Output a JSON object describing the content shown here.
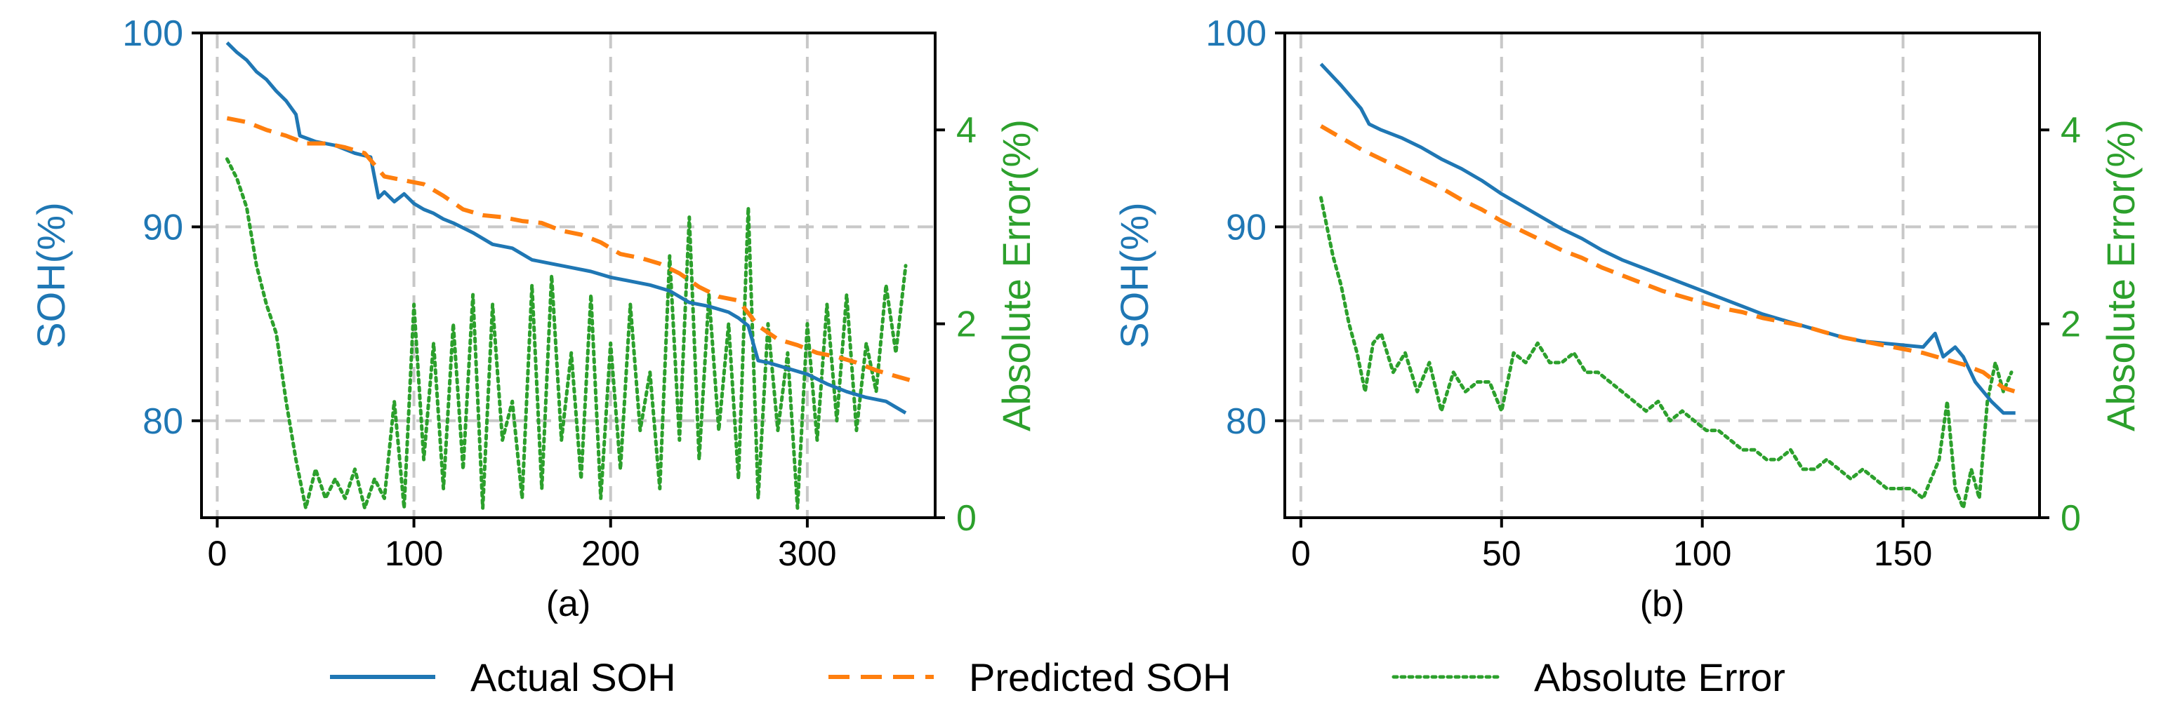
{
  "colors": {
    "actual": "#1f77b4",
    "predicted": "#ff7f0e",
    "error": "#2ca02c",
    "grid": "#c8c8c8",
    "axis": "#000000"
  },
  "legend": {
    "placement": "bottom-center",
    "items": [
      {
        "key": "actual",
        "label": "Actual SOH",
        "style": "solid"
      },
      {
        "key": "predicted",
        "label": "Predicted SOH",
        "style": "dashed"
      },
      {
        "key": "error",
        "label": "Absolute Error",
        "style": "dotted"
      }
    ]
  },
  "chart_data": [
    {
      "type": "line",
      "panel_label": "(a)",
      "ylabel": "SOH(%)",
      "y2label": "Absolute Error(%)",
      "xlim": [
        -8,
        365
      ],
      "ylim": [
        75,
        100
      ],
      "y2lim": [
        0,
        5
      ],
      "xticks": [
        0,
        100,
        200,
        300
      ],
      "yticks": [
        80,
        90,
        100
      ],
      "y2ticks": [
        0,
        2,
        4
      ],
      "grid": true,
      "series": [
        {
          "name": "Actual SOH",
          "axis": "left",
          "x": [
            5,
            10,
            15,
            20,
            25,
            30,
            35,
            40,
            42,
            50,
            60,
            70,
            78,
            82,
            85,
            90,
            95,
            100,
            105,
            110,
            115,
            120,
            130,
            140,
            150,
            160,
            170,
            180,
            190,
            200,
            210,
            220,
            230,
            240,
            250,
            260,
            265,
            270,
            275,
            280,
            290,
            300,
            310,
            320,
            330,
            340,
            350
          ],
          "y": [
            99.5,
            99.0,
            98.6,
            98.0,
            97.6,
            97.0,
            96.5,
            95.8,
            94.7,
            94.4,
            94.2,
            93.8,
            93.6,
            91.5,
            91.8,
            91.3,
            91.7,
            91.2,
            90.9,
            90.7,
            90.4,
            90.2,
            89.7,
            89.1,
            88.9,
            88.3,
            88.1,
            87.9,
            87.7,
            87.4,
            87.2,
            87.0,
            86.7,
            86.1,
            85.9,
            85.6,
            85.3,
            84.9,
            83.1,
            83.0,
            82.7,
            82.4,
            81.9,
            81.5,
            81.2,
            81.0,
            80.4
          ]
        },
        {
          "name": "Predicted SOH",
          "axis": "left",
          "x": [
            5,
            15,
            25,
            35,
            45,
            55,
            65,
            75,
            85,
            95,
            105,
            115,
            125,
            135,
            145,
            155,
            165,
            175,
            185,
            195,
            205,
            215,
            225,
            235,
            245,
            255,
            265,
            275,
            285,
            295,
            305,
            315,
            325,
            335,
            345,
            352
          ],
          "y": [
            95.6,
            95.4,
            95.0,
            94.7,
            94.3,
            94.3,
            94.1,
            93.8,
            92.6,
            92.4,
            92.2,
            91.6,
            90.9,
            90.6,
            90.5,
            90.3,
            90.2,
            89.8,
            89.6,
            89.2,
            88.6,
            88.4,
            88.1,
            87.6,
            86.9,
            86.4,
            86.2,
            84.9,
            84.2,
            83.9,
            83.5,
            83.3,
            83.0,
            82.6,
            82.3,
            82.1
          ]
        },
        {
          "name": "Absolute Error",
          "axis": "right",
          "x": [
            5,
            10,
            15,
            20,
            25,
            30,
            35,
            40,
            45,
            50,
            55,
            60,
            65,
            70,
            75,
            80,
            85,
            90,
            95,
            100,
            105,
            110,
            115,
            120,
            125,
            130,
            135,
            140,
            145,
            150,
            155,
            160,
            165,
            170,
            175,
            180,
            185,
            190,
            195,
            200,
            205,
            210,
            215,
            220,
            225,
            230,
            235,
            240,
            245,
            250,
            255,
            260,
            265,
            270,
            275,
            280,
            285,
            290,
            295,
            300,
            305,
            310,
            315,
            320,
            325,
            330,
            335,
            340,
            345,
            350
          ],
          "y": [
            3.7,
            3.5,
            3.2,
            2.6,
            2.2,
            1.9,
            1.2,
            0.6,
            0.1,
            0.5,
            0.2,
            0.4,
            0.2,
            0.5,
            0.1,
            0.4,
            0.2,
            1.2,
            0.1,
            2.2,
            0.6,
            1.8,
            0.3,
            2.0,
            0.5,
            2.3,
            0.1,
            2.2,
            0.8,
            1.2,
            0.2,
            2.4,
            0.3,
            2.5,
            0.8,
            1.7,
            0.4,
            2.3,
            0.2,
            1.8,
            0.5,
            2.2,
            0.9,
            1.5,
            0.3,
            2.7,
            0.8,
            3.1,
            0.6,
            2.3,
            0.9,
            2.0,
            0.4,
            3.2,
            0.2,
            2.0,
            0.9,
            1.7,
            0.1,
            2.0,
            0.8,
            2.2,
            1.0,
            2.3,
            0.9,
            1.8,
            1.3,
            2.4,
            1.7,
            2.6
          ]
        }
      ]
    },
    {
      "type": "line",
      "panel_label": "(b)",
      "ylabel": "SOH(%)",
      "y2label": "Absolute Error(%)",
      "xlim": [
        -4,
        184
      ],
      "ylim": [
        75,
        100
      ],
      "y2lim": [
        0,
        5
      ],
      "xticks": [
        0,
        50,
        100,
        150
      ],
      "yticks": [
        80,
        90,
        100
      ],
      "y2ticks": [
        0,
        2,
        4
      ],
      "grid": true,
      "series": [
        {
          "name": "Actual SOH",
          "axis": "left",
          "x": [
            5,
            10,
            15,
            17,
            20,
            25,
            30,
            35,
            40,
            45,
            50,
            55,
            60,
            65,
            70,
            75,
            80,
            85,
            90,
            95,
            100,
            105,
            110,
            115,
            120,
            125,
            130,
            135,
            140,
            145,
            150,
            155,
            158,
            160,
            163,
            165,
            168,
            172,
            175,
            178
          ],
          "y": [
            98.4,
            97.3,
            96.1,
            95.3,
            95.0,
            94.6,
            94.1,
            93.5,
            93.0,
            92.4,
            91.7,
            91.1,
            90.5,
            89.9,
            89.4,
            88.8,
            88.3,
            87.9,
            87.5,
            87.1,
            86.7,
            86.3,
            85.9,
            85.5,
            85.2,
            84.9,
            84.6,
            84.3,
            84.1,
            84.0,
            83.9,
            83.8,
            84.5,
            83.3,
            83.8,
            83.3,
            82.0,
            81.0,
            80.4,
            80.4
          ]
        },
        {
          "name": "Predicted SOH",
          "axis": "left",
          "x": [
            5,
            10,
            15,
            20,
            25,
            30,
            35,
            40,
            45,
            50,
            55,
            60,
            65,
            70,
            75,
            80,
            85,
            90,
            95,
            100,
            105,
            110,
            115,
            120,
            125,
            130,
            135,
            140,
            145,
            150,
            155,
            160,
            165,
            170,
            175,
            178
          ],
          "y": [
            95.2,
            94.6,
            94.0,
            93.5,
            93.0,
            92.5,
            92.0,
            91.4,
            90.9,
            90.3,
            89.8,
            89.3,
            88.8,
            88.4,
            87.9,
            87.5,
            87.1,
            86.7,
            86.4,
            86.1,
            85.8,
            85.6,
            85.3,
            85.1,
            84.9,
            84.6,
            84.3,
            84.1,
            83.9,
            83.7,
            83.5,
            83.2,
            82.9,
            82.5,
            81.7,
            81.5
          ]
        },
        {
          "name": "Absolute Error",
          "axis": "right",
          "x": [
            5,
            8,
            10,
            12,
            14,
            16,
            18,
            20,
            23,
            26,
            29,
            32,
            35,
            38,
            41,
            44,
            47,
            50,
            53,
            56,
            59,
            62,
            65,
            68,
            71,
            74,
            77,
            80,
            83,
            86,
            89,
            92,
            95,
            98,
            101,
            104,
            107,
            110,
            113,
            116,
            119,
            122,
            125,
            128,
            131,
            134,
            137,
            140,
            143,
            146,
            149,
            152,
            155,
            157,
            159,
            161,
            163,
            165,
            167,
            169,
            171,
            173,
            175,
            177
          ],
          "y": [
            3.3,
            2.7,
            2.4,
            2.0,
            1.7,
            1.3,
            1.8,
            1.9,
            1.5,
            1.7,
            1.3,
            1.6,
            1.1,
            1.5,
            1.3,
            1.4,
            1.4,
            1.1,
            1.7,
            1.6,
            1.8,
            1.6,
            1.6,
            1.7,
            1.5,
            1.5,
            1.4,
            1.3,
            1.2,
            1.1,
            1.2,
            1.0,
            1.1,
            1.0,
            0.9,
            0.9,
            0.8,
            0.7,
            0.7,
            0.6,
            0.6,
            0.7,
            0.5,
            0.5,
            0.6,
            0.5,
            0.4,
            0.5,
            0.4,
            0.3,
            0.3,
            0.3,
            0.2,
            0.4,
            0.6,
            1.2,
            0.3,
            0.1,
            0.5,
            0.2,
            1.2,
            1.6,
            1.3,
            1.5
          ]
        }
      ]
    }
  ]
}
